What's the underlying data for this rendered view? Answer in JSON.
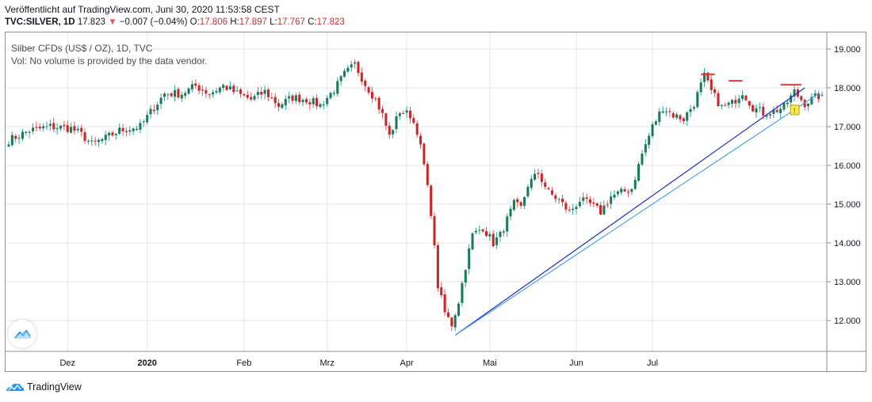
{
  "header": {
    "published": "Veröffentlicht auf TradingView.com, Juni 30, 2020 11:53:58 CEST",
    "symbol": "TVC:SILVER, 1D",
    "last": "17.823",
    "arrow": "▼",
    "change": "−0.007 (−0.04%)",
    "o_label": "O:",
    "o": "17.806",
    "h_label": "H:",
    "h": "17.897",
    "l_label": "L:",
    "l": "17.767",
    "c_label": "C:",
    "c": "17.823"
  },
  "legend": {
    "title": "Silber CFDs (US$ / OZ), 1D, TVC",
    "volume": "Vol: No volume is provided by the data vendor."
  },
  "footer": {
    "brand": "TradingView",
    "logo_icon": "tradingview-cloud-icon"
  },
  "colors": {
    "up": "#26a69a",
    "down": "#ef5350",
    "up_body": "#1b7a5c",
    "down_body": "#c62828",
    "trend1": "#1a2ecc",
    "trend2": "#4aa3e8",
    "resistance": "#e53935",
    "grid": "#e6e6e6"
  },
  "chart_data": {
    "type": "candlestick",
    "ylim": [
      11.4,
      19.3
    ],
    "y_ticks": [
      "19.000",
      "18.000",
      "17.000",
      "16.000",
      "15.000",
      "14.000",
      "13.000",
      "12.000"
    ],
    "x_labels": [
      "Dez",
      "2020",
      "Feb",
      "Mrz",
      "Apr",
      "Mai",
      "Jun",
      "Jul"
    ],
    "anchors": [
      [
        0,
        16.65
      ],
      [
        6,
        16.9
      ],
      [
        12,
        17.0
      ],
      [
        18,
        16.95
      ],
      [
        21,
        16.8
      ],
      [
        24,
        16.55
      ],
      [
        28,
        16.7
      ],
      [
        32,
        16.9
      ],
      [
        38,
        17.0
      ],
      [
        42,
        17.5
      ],
      [
        45,
        17.85
      ],
      [
        50,
        17.85
      ],
      [
        54,
        18.05
      ],
      [
        58,
        17.85
      ],
      [
        62,
        18.05
      ],
      [
        66,
        17.85
      ],
      [
        70,
        17.7
      ],
      [
        74,
        17.9
      ],
      [
        78,
        17.55
      ],
      [
        82,
        17.75
      ],
      [
        86,
        17.7
      ],
      [
        90,
        17.55
      ],
      [
        94,
        17.95
      ],
      [
        97,
        18.35
      ],
      [
        100,
        18.6
      ],
      [
        103,
        18.1
      ],
      [
        106,
        17.7
      ],
      [
        108,
        17.3
      ],
      [
        110,
        16.75
      ],
      [
        113,
        17.4
      ],
      [
        116,
        17.3
      ],
      [
        118,
        16.9
      ],
      [
        120,
        16.0
      ],
      [
        122,
        14.8
      ],
      [
        124,
        12.9
      ],
      [
        126,
        12.2
      ],
      [
        128,
        11.9
      ],
      [
        130,
        12.5
      ],
      [
        132,
        13.4
      ],
      [
        134,
        14.2
      ],
      [
        137,
        14.4
      ],
      [
        140,
        14.0
      ],
      [
        142,
        14.2
      ],
      [
        144,
        14.6
      ],
      [
        146,
        15.0
      ],
      [
        148,
        14.9
      ],
      [
        150,
        15.5
      ],
      [
        153,
        15.8
      ],
      [
        156,
        15.3
      ],
      [
        159,
        15.1
      ],
      [
        162,
        14.8
      ],
      [
        165,
        15.1
      ],
      [
        168,
        15.0
      ],
      [
        171,
        14.8
      ],
      [
        174,
        15.2
      ],
      [
        177,
        15.3
      ],
      [
        180,
        15.4
      ],
      [
        183,
        16.3
      ],
      [
        186,
        17.0
      ],
      [
        189,
        17.5
      ],
      [
        192,
        17.3
      ],
      [
        195,
        17.2
      ],
      [
        198,
        17.6
      ],
      [
        201,
        18.3
      ],
      [
        203,
        17.9
      ],
      [
        206,
        17.5
      ],
      [
        209,
        17.6
      ],
      [
        212,
        17.9
      ],
      [
        215,
        17.5
      ],
      [
        218,
        17.35
      ],
      [
        221,
        17.4
      ],
      [
        224,
        17.5
      ],
      [
        227,
        17.9
      ],
      [
        230,
        17.6
      ],
      [
        233,
        17.75
      ],
      [
        235,
        17.82
      ]
    ],
    "ohlc_last": {
      "o": 17.806,
      "h": 17.897,
      "l": 17.767,
      "c": 17.823
    },
    "trendlines": [
      {
        "from": [
          129,
          11.62
        ],
        "to": [
          230,
          18.0
        ]
      },
      {
        "from": [
          129,
          11.62
        ],
        "to": [
          234,
          17.85
        ]
      }
    ],
    "resistance_levels": [
      {
        "from": [
          200,
          18.35
        ],
        "to": [
          204,
          18.35
        ]
      },
      {
        "from": [
          208,
          18.18
        ],
        "to": [
          212,
          18.18
        ]
      },
      {
        "from": [
          223,
          18.08
        ],
        "to": [
          229,
          18.08
        ]
      }
    ],
    "marker": {
      "index": 227,
      "value": 17.43,
      "label": "!"
    }
  }
}
